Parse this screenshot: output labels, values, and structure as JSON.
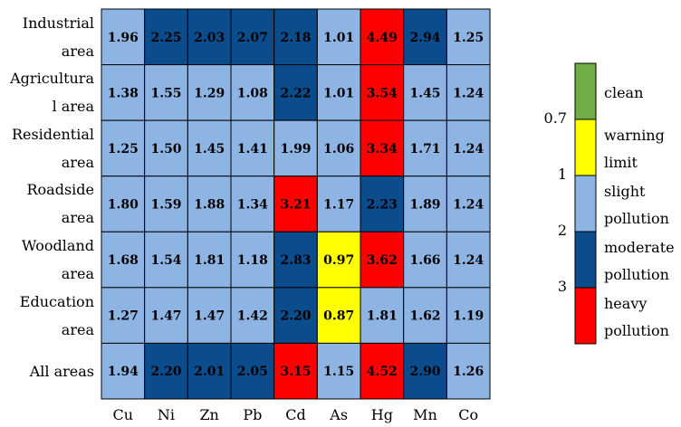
{
  "chart_data": {
    "type": "heatmap",
    "rows": [
      "Industrial area",
      "Agricultura l area",
      "Residential area",
      "Roadside area",
      "Woodland area",
      "Education area",
      "All areas"
    ],
    "row_label_lines": [
      [
        "Industrial",
        "area"
      ],
      [
        "Agricultura",
        "l area"
      ],
      [
        "Residential",
        "area"
      ],
      [
        "Roadside",
        "area"
      ],
      [
        "Woodland",
        "area"
      ],
      [
        "Education",
        "area"
      ],
      [
        "All areas"
      ]
    ],
    "columns": [
      "Cu",
      "Ni",
      "Zn",
      "Pb",
      "Cd",
      "As",
      "Hg",
      "Mn",
      "Co"
    ],
    "values": [
      [
        1.96,
        2.25,
        2.03,
        2.07,
        2.18,
        1.01,
        4.49,
        2.94,
        1.25
      ],
      [
        1.38,
        1.55,
        1.29,
        1.08,
        2.22,
        1.01,
        3.54,
        1.45,
        1.24
      ],
      [
        1.25,
        1.5,
        1.45,
        1.41,
        1.99,
        1.06,
        3.34,
        1.71,
        1.24
      ],
      [
        1.8,
        1.59,
        1.88,
        1.34,
        3.21,
        1.17,
        2.23,
        1.89,
        1.24
      ],
      [
        1.68,
        1.54,
        1.81,
        1.18,
        2.83,
        0.97,
        3.62,
        1.66,
        1.24
      ],
      [
        1.27,
        1.47,
        1.47,
        1.42,
        2.2,
        0.87,
        1.81,
        1.62,
        1.19
      ],
      [
        1.94,
        2.2,
        2.01,
        2.05,
        3.15,
        1.15,
        4.52,
        2.9,
        1.26
      ]
    ],
    "value_labels": [
      [
        "1.96",
        "2.25",
        "2.03",
        "2.07",
        "2.18",
        "1.01",
        "4.49",
        "2.94",
        "1.25"
      ],
      [
        "1.38",
        "1.55",
        "1.29",
        "1.08",
        "2.22",
        "1.01",
        "3.54",
        "1.45",
        "1.24"
      ],
      [
        "1.25",
        "1.50",
        "1.45",
        "1.41",
        "1.99",
        "1.06",
        "3.34",
        "1.71",
        "1.24"
      ],
      [
        "1.80",
        "1.59",
        "1.88",
        "1.34",
        "3.21",
        "1.17",
        "2.23",
        "1.89",
        "1.24"
      ],
      [
        "1.68",
        "1.54",
        "1.81",
        "1.18",
        "2.83",
        "0.97",
        "3.62",
        "1.66",
        "1.24"
      ],
      [
        "1.27",
        "1.47",
        "1.47",
        "1.42",
        "2.20",
        "0.87",
        "1.81",
        "1.62",
        "1.19"
      ],
      [
        "1.94",
        "2.20",
        "2.01",
        "2.05",
        "3.15",
        "1.15",
        "4.52",
        "2.90",
        "1.26"
      ]
    ],
    "legend": {
      "placement": "right",
      "categories": [
        {
          "lines": [
            "clean"
          ],
          "color": "#70ad47"
        },
        {
          "lines": [
            "warning",
            "limit"
          ],
          "color": "#ffff00"
        },
        {
          "lines": [
            "slight",
            "pollution"
          ],
          "color": "#8eb4e3"
        },
        {
          "lines": [
            "moderate",
            "pollution"
          ],
          "color": "#0b4c8c"
        },
        {
          "lines": [
            "heavy",
            "pollution"
          ],
          "color": "#ff0000"
        }
      ],
      "thresholds": [
        "0.7",
        "1",
        "2",
        "3"
      ]
    },
    "grid": true
  }
}
